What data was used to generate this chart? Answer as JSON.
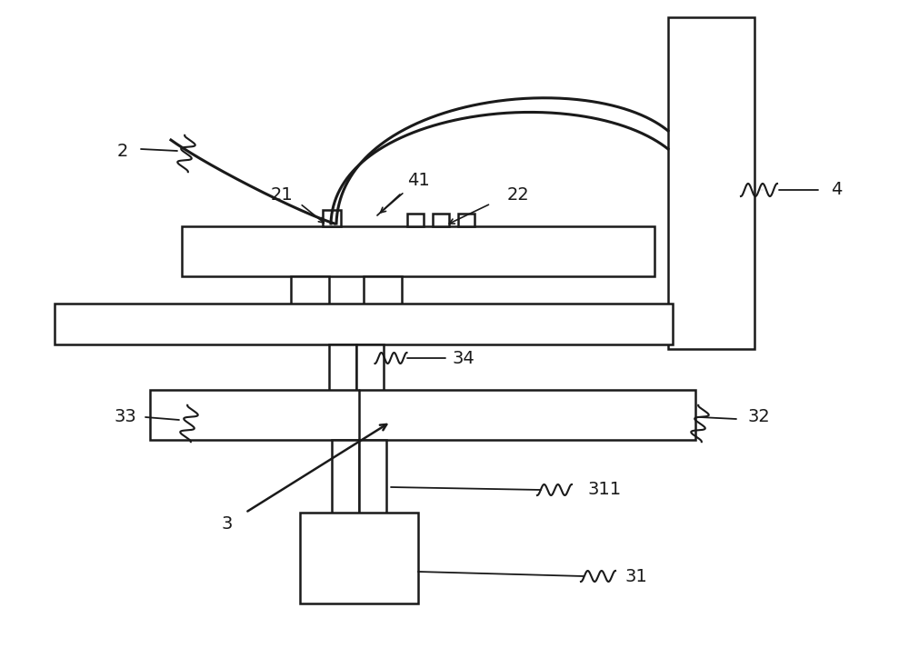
{
  "bg_color": "#ffffff",
  "line_color": "#1a1a1a",
  "figsize": [
    10.0,
    7.24
  ],
  "dpi": 100
}
